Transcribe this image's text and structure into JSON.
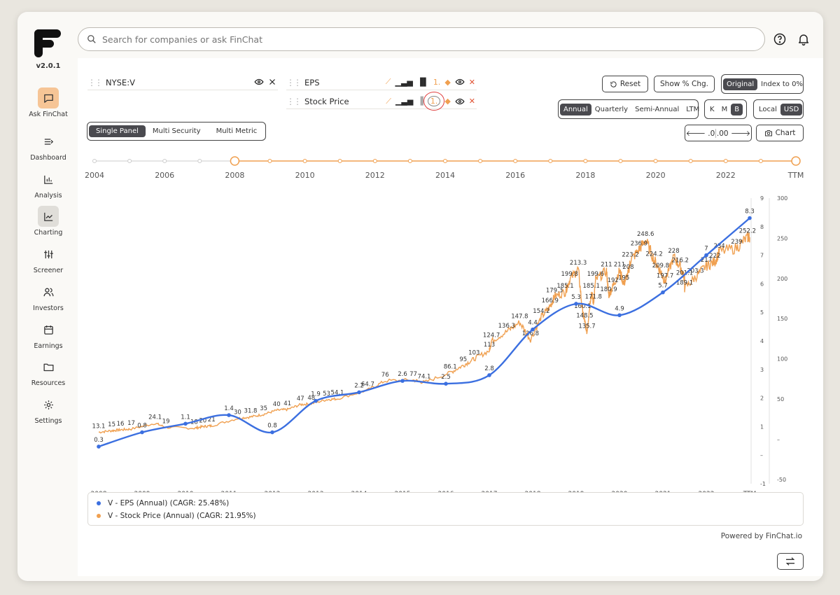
{
  "app": {
    "version": "v2.0.1",
    "search_placeholder": "Search for companies or ask FinChat",
    "powered_by": "Powered by FinChat.io"
  },
  "nav": [
    {
      "label": "Ask FinChat",
      "icon": "chat-bubble-icon"
    },
    {
      "label": "Dashboard",
      "icon": "dashboard-icon"
    },
    {
      "label": "Analysis",
      "icon": "bar-chart-icon"
    },
    {
      "label": "Charting",
      "icon": "line-chart-icon"
    },
    {
      "label": "Screener",
      "icon": "sliders-icon"
    },
    {
      "label": "Investors",
      "icon": "users-icon"
    },
    {
      "label": "Earnings",
      "icon": "calendar-icon"
    },
    {
      "label": "Resources",
      "icon": "folder-icon"
    },
    {
      "label": "Settings",
      "icon": "gear-icon"
    }
  ],
  "security": {
    "ticker": "NYSE:V"
  },
  "metrics": [
    {
      "label": "EPS"
    },
    {
      "label": "Stock Price"
    }
  ],
  "view_modes": [
    "Single Panel",
    "Multi Security",
    "Multi Metric"
  ],
  "view_mode_selected": "Single Panel",
  "toolbar": {
    "reset": "Reset",
    "show_pct": "Show % Chg.",
    "original": "Original",
    "index": "Index to 0%",
    "periods": [
      "Annual",
      "Quarterly",
      "Semi-Annual",
      "LTM"
    ],
    "period_selected": "Annual",
    "units": [
      "K",
      "M",
      "B"
    ],
    "unit_selected": "B",
    "currency": [
      "Local",
      "USD"
    ],
    "currency_selected": "USD",
    "dec_less": ".0",
    "dec_more": ".00",
    "chart_btn": "Chart"
  },
  "timeline": {
    "labels": [
      "2004",
      "2006",
      "2008",
      "2010",
      "2012",
      "2014",
      "2016",
      "2018",
      "2020",
      "2022",
      "TTM"
    ]
  },
  "chart_data": {
    "type": "line",
    "x_labels": [
      "2008",
      "2009",
      "2010",
      "2011",
      "2012",
      "2013",
      "2014",
      "2015",
      "2016",
      "2017",
      "2018",
      "2019",
      "2020",
      "2021",
      "2022",
      "TTM"
    ],
    "y_left_ticks": [
      "9",
      "8",
      "7",
      "6",
      "5",
      "4",
      "3",
      "2",
      "1",
      "–",
      "-1"
    ],
    "y_right_ticks": [
      "300",
      "250",
      "200",
      "150",
      "100",
      "50",
      "–",
      "-50"
    ],
    "ylim_left": [
      -1,
      9
    ],
    "ylim_right": [
      -50,
      300
    ],
    "series": [
      {
        "name": "V - EPS (Annual) (CAGR: 25.48%)",
        "color": "#3b6fe0",
        "axis": "left",
        "points": [
          {
            "x": 0,
            "y": 0.3,
            "label": "0.3"
          },
          {
            "x": 1,
            "y": 0.8,
            "label": "0.8"
          },
          {
            "x": 2,
            "y": 1.1,
            "label": "1.1"
          },
          {
            "x": 3,
            "y": 1.4,
            "label": "1.4"
          },
          {
            "x": 4,
            "y": 0.8,
            "label": "0.8"
          },
          {
            "x": 5,
            "y": 1.9,
            "label": "1.9"
          },
          {
            "x": 6,
            "y": 2.2,
            "label": "2.2"
          },
          {
            "x": 7,
            "y": 2.6,
            "label": "2.6"
          },
          {
            "x": 8,
            "y": 2.5,
            "label": "2.5"
          },
          {
            "x": 9,
            "y": 2.8,
            "label": "2.8"
          },
          {
            "x": 10,
            "y": 4.4,
            "label": "4.4"
          },
          {
            "x": 11,
            "y": 5.3,
            "label": "5.3"
          },
          {
            "x": 12,
            "y": 4.9,
            "label": "4.9"
          },
          {
            "x": 13,
            "y": 5.7,
            "label": "5.7"
          },
          {
            "x": 14,
            "y": 7,
            "label": "7"
          },
          {
            "x": 15,
            "y": 8.3,
            "label": "8.3"
          }
        ]
      },
      {
        "name": "V - Stock Price (Annual) (CAGR: 21.95%)",
        "color": "#f0a050",
        "axis": "right",
        "points": [
          {
            "x": 0,
            "y": 13.1,
            "label": "13.1"
          },
          {
            "x": 0.3,
            "y": 15,
            "label": "15"
          },
          {
            "x": 0.5,
            "y": 16,
            "label": "16"
          },
          {
            "x": 0.75,
            "y": 17,
            "label": "17"
          },
          {
            "x": 1.3,
            "y": 24.1,
            "label": "24.1"
          },
          {
            "x": 1.55,
            "y": 19,
            "label": "19"
          },
          {
            "x": 2.2,
            "y": 18,
            "label": "18"
          },
          {
            "x": 2.4,
            "y": 20,
            "label": "20"
          },
          {
            "x": 2.6,
            "y": 21,
            "label": "21"
          },
          {
            "x": 3.2,
            "y": 30,
            "label": "30"
          },
          {
            "x": 3.5,
            "y": 31.8,
            "label": "31.8"
          },
          {
            "x": 3.8,
            "y": 35,
            "label": "35"
          },
          {
            "x": 4.1,
            "y": 40,
            "label": "40"
          },
          {
            "x": 4.35,
            "y": 41,
            "label": "41"
          },
          {
            "x": 4.65,
            "y": 47,
            "label": "47"
          },
          {
            "x": 4.9,
            "y": 48,
            "label": "48"
          },
          {
            "x": 5.25,
            "y": 53,
            "label": "53"
          },
          {
            "x": 5.5,
            "y": 54.1,
            "label": "54.1"
          },
          {
            "x": 6.2,
            "y": 64.7,
            "label": "64.7"
          },
          {
            "x": 6.6,
            "y": 76,
            "label": "76"
          },
          {
            "x": 7.25,
            "y": 77,
            "label": "77"
          },
          {
            "x": 7.5,
            "y": 74.1,
            "label": "74.1"
          },
          {
            "x": 8.1,
            "y": 86.1,
            "label": "86.1"
          },
          {
            "x": 8.4,
            "y": 95,
            "label": "95"
          },
          {
            "x": 8.65,
            "y": 103,
            "label": "103"
          },
          {
            "x": 9.0,
            "y": 113,
            "label": "113"
          },
          {
            "x": 9.05,
            "y": 124.7,
            "label": "124.7"
          },
          {
            "x": 9.4,
            "y": 136.3,
            "label": "136.3"
          },
          {
            "x": 9.7,
            "y": 147.8,
            "label": "147.8"
          },
          {
            "x": 9.95,
            "y": 126.8,
            "label": "126.8"
          },
          {
            "x": 10.2,
            "y": 154.2,
            "label": "154.2"
          },
          {
            "x": 10.4,
            "y": 166.9,
            "label": "166.9"
          },
          {
            "x": 10.5,
            "y": 179.3,
            "label": "179.3"
          },
          {
            "x": 10.75,
            "y": 185.1,
            "label": "185.1"
          },
          {
            "x": 10.85,
            "y": 199.8,
            "label": "199.8"
          },
          {
            "x": 11.05,
            "y": 213.3,
            "label": "213.3"
          },
          {
            "x": 11.15,
            "y": 160.1,
            "label": "160.1"
          },
          {
            "x": 11.2,
            "y": 148.5,
            "label": "148.5"
          },
          {
            "x": 11.25,
            "y": 135.7,
            "label": "135.7"
          },
          {
            "x": 11.35,
            "y": 185.1,
            "label": "185.1"
          },
          {
            "x": 11.4,
            "y": 171.8,
            "label": "171.8"
          },
          {
            "x": 11.45,
            "y": 199.6,
            "label": "199.6"
          },
          {
            "x": 11.75,
            "y": 180.9,
            "label": "180.9"
          },
          {
            "x": 11.7,
            "y": 211,
            "label": "211"
          },
          {
            "x": 11.85,
            "y": 192,
            "label": "192"
          },
          {
            "x": 12.0,
            "y": 211,
            "label": "211"
          },
          {
            "x": 12.1,
            "y": 195,
            "label": "195"
          },
          {
            "x": 12.2,
            "y": 208,
            "label": "208"
          },
          {
            "x": 12.25,
            "y": 223.2,
            "label": "223.2"
          },
          {
            "x": 12.45,
            "y": 236.9,
            "label": "236.9"
          },
          {
            "x": 12.6,
            "y": 248.6,
            "label": "248.6"
          },
          {
            "x": 12.8,
            "y": 224.2,
            "label": "224.2"
          },
          {
            "x": 12.95,
            "y": 209.8,
            "label": "209.8"
          },
          {
            "x": 13.05,
            "y": 197.7,
            "label": "197.7"
          },
          {
            "x": 13.25,
            "y": 228,
            "label": "228"
          },
          {
            "x": 13.4,
            "y": 216.2,
            "label": "216.2"
          },
          {
            "x": 13.5,
            "y": 201.1,
            "label": "201.1"
          },
          {
            "x": 13.5,
            "y": 189.1,
            "label": "189.1"
          },
          {
            "x": 13.75,
            "y": 203.3,
            "label": "203.3"
          },
          {
            "x": 14.0,
            "y": 217,
            "label": "217"
          },
          {
            "x": 14.2,
            "y": 222,
            "label": "222"
          },
          {
            "x": 14.3,
            "y": 234,
            "label": "234"
          },
          {
            "x": 14.7,
            "y": 239,
            "label": "239"
          },
          {
            "x": 14.95,
            "y": 252.2,
            "label": "252.2"
          },
          {
            "x": 15,
            "y": 252,
            "label": ""
          }
        ]
      }
    ]
  }
}
